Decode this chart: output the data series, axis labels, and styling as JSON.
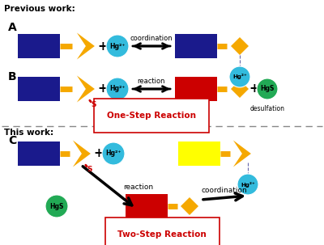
{
  "bg_color": "#ffffff",
  "navy": "#1a1a8c",
  "yellow": "#f5a800",
  "red": "#cc0000",
  "bright_yellow": "#ffff00",
  "cyan": "#33bbdd",
  "green": "#22aa55",
  "black": "#000000",
  "title_prev": "Previous work:",
  "title_this": "This work:",
  "label_A": "A",
  "label_B": "B",
  "label_C": "C",
  "text_coordination": "coordination",
  "text_reaction": "reaction",
  "text_one_step": "One-Step Reaction",
  "text_two_step": "Two-Step Reaction",
  "text_desulfation": "desulfation",
  "text_hgs": "HgS",
  "text_hg2plus": "Hg²⁺",
  "text_s": "S"
}
